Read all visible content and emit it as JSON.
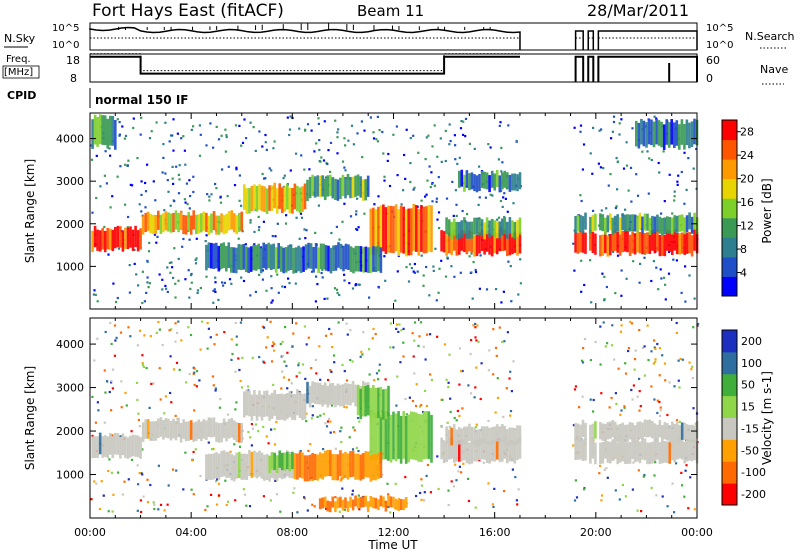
{
  "header": {
    "station": "Fort Hays East (fitACF)",
    "beam": "Beam 11",
    "date": "28/Mar/2011"
  },
  "colors": {
    "power": [
      "#0000ff",
      "#1f4fc8",
      "#2d7f8f",
      "#3a9a55",
      "#7dcf2a",
      "#e8d400",
      "#ff9900",
      "#ff5500",
      "#ff0000"
    ],
    "velocity": [
      "#ff0000",
      "#ff6a00",
      "#ffa000",
      "#c8c8c0",
      "#8fd64a",
      "#3fae3a",
      "#2f6f9f",
      "#1d2fbf"
    ]
  },
  "chart_data": [
    {
      "type": "line",
      "name": "nsky-nsearch-panel",
      "left_label": "N.Sky",
      "left_ticks": [
        "10^5",
        "10^0"
      ],
      "right_ticks": [
        "10^5",
        "10^0"
      ],
      "right_legend": "N.Search",
      "xlim": [
        0,
        24
      ]
    },
    {
      "type": "line",
      "name": "freq-nave-panel",
      "left_label": [
        "Freq.",
        "[MHz]"
      ],
      "left_ticks": [
        "18",
        "8"
      ],
      "right_ticks": [
        "60",
        "0"
      ],
      "right_legend": "Nave",
      "series": [
        {
          "name": "Freq.",
          "x": [
            0,
            2,
            2,
            14,
            14,
            17
          ],
          "y": [
            17,
            17,
            11,
            11,
            17,
            17
          ]
        }
      ],
      "xlim": [
        0,
        24
      ],
      "ylim": [
        8,
        18
      ]
    },
    {
      "type": "table",
      "name": "cpid-row",
      "label": "CPID",
      "value": "normal 150 IF"
    },
    {
      "type": "heatmap",
      "name": "power-panel",
      "ylabel": "Slant Range [km]",
      "yticks": [
        1000,
        2000,
        3000,
        4000
      ],
      "ylim": [
        0,
        4600
      ],
      "xlim": [
        0,
        24
      ],
      "colorbar": {
        "label": "Power [dB]",
        "ticks": [
          4,
          8,
          12,
          16,
          20,
          24,
          28
        ],
        "range": [
          0,
          30
        ]
      },
      "bands": [
        {
          "x0": 0.0,
          "x1": 2.0,
          "r0": 1400,
          "r1": 1900,
          "level": 28
        },
        {
          "x0": 2.0,
          "x1": 6.0,
          "r0": 1800,
          "r1": 2250,
          "level": 20
        },
        {
          "x0": 6.0,
          "x1": 8.5,
          "r0": 2300,
          "r1": 2900,
          "level": 20
        },
        {
          "x0": 8.5,
          "x1": 11.0,
          "r0": 2600,
          "r1": 3100,
          "level": 12
        },
        {
          "x0": 11.0,
          "x1": 13.5,
          "r0": 1300,
          "r1": 2400,
          "level": 24
        },
        {
          "x0": 13.8,
          "x1": 17.0,
          "r0": 1300,
          "r1": 1800,
          "level": 28
        },
        {
          "x0": 19.0,
          "x1": 24.0,
          "r0": 1300,
          "r1": 1800,
          "level": 28
        },
        {
          "x0": 4.5,
          "x1": 11.5,
          "r0": 900,
          "r1": 1500,
          "level": 8
        },
        {
          "x0": 14.0,
          "x1": 17.0,
          "r0": 1700,
          "r1": 2100,
          "level": 12
        },
        {
          "x0": 19.0,
          "x1": 24.0,
          "r0": 1800,
          "r1": 2200,
          "level": 12
        },
        {
          "x0": 14.5,
          "x1": 17.0,
          "r0": 2800,
          "r1": 3200,
          "level": 8
        },
        {
          "x0": 0.0,
          "x1": 1.0,
          "r0": 3800,
          "r1": 4500,
          "level": 12
        },
        {
          "x0": 21.5,
          "x1": 24.0,
          "r0": 3800,
          "r1": 4400,
          "level": 8
        }
      ]
    },
    {
      "type": "heatmap",
      "name": "velocity-panel",
      "ylabel": "Slant Range [km]",
      "yticks": [
        1000,
        2000,
        3000,
        4000
      ],
      "ylim": [
        0,
        4600
      ],
      "xlim": [
        0,
        24
      ],
      "xticks": [
        "00:00",
        "04:00",
        "08:00",
        "12:00",
        "16:00",
        "20:00",
        "00:00"
      ],
      "xlabel": "Time UT",
      "colorbar": {
        "label": "Velocity [m s-1]",
        "ticks": [
          -200,
          -100,
          -50,
          -15,
          15,
          50,
          100,
          200
        ]
      },
      "bands": [
        {
          "x0": 0.0,
          "x1": 2.0,
          "r0": 1400,
          "r1": 1900,
          "level": 0
        },
        {
          "x0": 2.0,
          "x1": 6.0,
          "r0": 1800,
          "r1": 2250,
          "level": 0
        },
        {
          "x0": 6.0,
          "x1": 8.5,
          "r0": 2300,
          "r1": 2900,
          "level": 0
        },
        {
          "x0": 8.5,
          "x1": 11.0,
          "r0": 2600,
          "r1": 3100,
          "level": 0
        },
        {
          "x0": 11.0,
          "x1": 13.5,
          "r0": 1300,
          "r1": 2400,
          "level": 30
        },
        {
          "x0": 13.8,
          "x1": 17.0,
          "r0": 1300,
          "r1": 1800,
          "level": 0
        },
        {
          "x0": 19.0,
          "x1": 24.0,
          "r0": 1300,
          "r1": 1800,
          "level": 0
        },
        {
          "x0": 4.5,
          "x1": 8.0,
          "r0": 900,
          "r1": 1500,
          "level": 0
        },
        {
          "x0": 8.0,
          "x1": 11.5,
          "r0": 900,
          "r1": 1500,
          "level": -60
        },
        {
          "x0": 7.0,
          "x1": 8.0,
          "r0": 1100,
          "r1": 1500,
          "level": 40
        },
        {
          "x0": 9.0,
          "x1": 12.5,
          "r0": 200,
          "r1": 450,
          "level": -60
        },
        {
          "x0": 14.0,
          "x1": 17.0,
          "r0": 1700,
          "r1": 2100,
          "level": 0
        },
        {
          "x0": 19.0,
          "x1": 24.0,
          "r0": 1800,
          "r1": 2200,
          "level": 0
        },
        {
          "x0": 10.5,
          "x1": 11.8,
          "r0": 2300,
          "r1": 3000,
          "level": 40
        }
      ]
    }
  ]
}
